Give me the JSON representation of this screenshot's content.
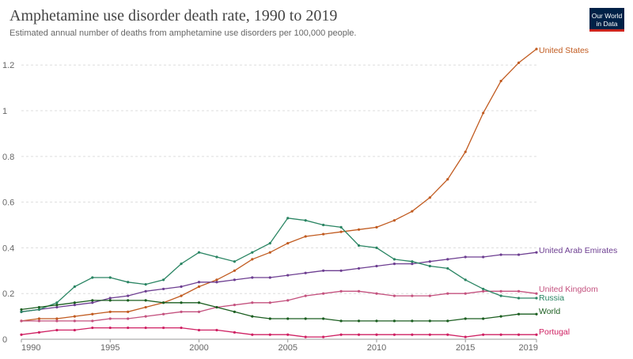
{
  "header": {
    "title": "Amphetamine use disorder death rate, 1990 to 2019",
    "subtitle": "Estimated annual number of deaths from amphetamine use disorders per 100,000 people."
  },
  "logo": {
    "line1": "Our World",
    "line2": "in Data",
    "bg": "#002147",
    "accent": "#ce261e"
  },
  "chart_data": {
    "type": "line",
    "title": "Amphetamine use disorder death rate, 1990 to 2019",
    "subtitle": "Estimated annual number of deaths from amphetamine use disorders per 100,000 people.",
    "x": [
      1990,
      1991,
      1992,
      1993,
      1994,
      1995,
      1996,
      1997,
      1998,
      1999,
      2000,
      2001,
      2002,
      2003,
      2004,
      2005,
      2006,
      2007,
      2008,
      2009,
      2010,
      2011,
      2012,
      2013,
      2014,
      2015,
      2016,
      2017,
      2018,
      2019
    ],
    "xlim": [
      1990,
      2019
    ],
    "ylim": [
      0,
      1.27
    ],
    "x_ticks": [
      1990,
      1995,
      2000,
      2005,
      2010,
      2015,
      2019
    ],
    "y_ticks": [
      0,
      0.2,
      0.4,
      0.6,
      0.8,
      1,
      1.2
    ],
    "y_tick_labels": [
      "0",
      "0.2",
      "0.4",
      "0.6",
      "0.8",
      "1",
      "1.2"
    ],
    "grid": "horizontal dashed",
    "legend": "labels at line ends (right)",
    "series": [
      {
        "name": "United States",
        "color": "#c15b20",
        "values": [
          0.08,
          0.09,
          0.09,
          0.1,
          0.11,
          0.12,
          0.12,
          0.14,
          0.16,
          0.19,
          0.23,
          0.26,
          0.3,
          0.35,
          0.38,
          0.42,
          0.45,
          0.46,
          0.47,
          0.48,
          0.49,
          0.52,
          0.56,
          0.62,
          0.7,
          0.82,
          0.99,
          1.13,
          1.21,
          1.27
        ]
      },
      {
        "name": "United Arab Emirates",
        "color": "#6d3e91",
        "values": [
          0.12,
          0.13,
          0.14,
          0.15,
          0.16,
          0.18,
          0.19,
          0.21,
          0.22,
          0.23,
          0.25,
          0.25,
          0.26,
          0.27,
          0.27,
          0.28,
          0.29,
          0.3,
          0.3,
          0.31,
          0.32,
          0.33,
          0.33,
          0.34,
          0.35,
          0.36,
          0.36,
          0.37,
          0.37,
          0.38
        ]
      },
      {
        "name": "United Kingdom",
        "color": "#c4527f",
        "values": [
          0.08,
          0.08,
          0.08,
          0.08,
          0.08,
          0.09,
          0.09,
          0.1,
          0.11,
          0.12,
          0.12,
          0.14,
          0.15,
          0.16,
          0.16,
          0.17,
          0.19,
          0.2,
          0.21,
          0.21,
          0.2,
          0.19,
          0.19,
          0.19,
          0.2,
          0.2,
          0.21,
          0.21,
          0.21,
          0.2
        ]
      },
      {
        "name": "Russia",
        "color": "#2a8563",
        "values": [
          0.12,
          0.13,
          0.16,
          0.23,
          0.27,
          0.27,
          0.25,
          0.24,
          0.26,
          0.33,
          0.38,
          0.36,
          0.34,
          0.38,
          0.42,
          0.53,
          0.52,
          0.5,
          0.49,
          0.41,
          0.4,
          0.35,
          0.34,
          0.32,
          0.31,
          0.26,
          0.22,
          0.19,
          0.18,
          0.18
        ]
      },
      {
        "name": "World",
        "color": "#1b5e20",
        "values": [
          0.13,
          0.14,
          0.15,
          0.16,
          0.17,
          0.17,
          0.17,
          0.17,
          0.16,
          0.16,
          0.16,
          0.14,
          0.12,
          0.1,
          0.09,
          0.09,
          0.09,
          0.09,
          0.08,
          0.08,
          0.08,
          0.08,
          0.08,
          0.08,
          0.08,
          0.09,
          0.09,
          0.1,
          0.11,
          0.11
        ]
      },
      {
        "name": "Portugal",
        "color": "#cf2163",
        "values": [
          0.02,
          0.03,
          0.04,
          0.04,
          0.05,
          0.05,
          0.05,
          0.05,
          0.05,
          0.05,
          0.04,
          0.04,
          0.03,
          0.02,
          0.02,
          0.02,
          0.01,
          0.01,
          0.02,
          0.02,
          0.02,
          0.02,
          0.02,
          0.02,
          0.02,
          0.01,
          0.02,
          0.02,
          0.02,
          0.02
        ]
      }
    ]
  }
}
